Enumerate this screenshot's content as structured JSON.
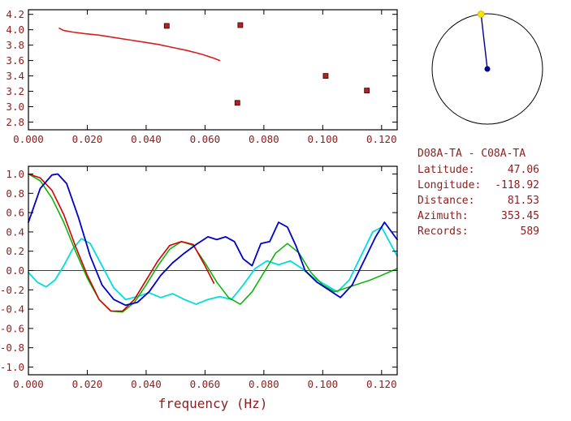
{
  "text_color": "#8b2020",
  "frame_color": "#000000",
  "station_info": {
    "title": "D08A-TA - C08A-TA",
    "rows": [
      {
        "label": "Latitude:",
        "value": "47.06"
      },
      {
        "label": "Longitude:",
        "value": "-118.92"
      },
      {
        "label": "Distance:",
        "value": "81.53"
      },
      {
        "label": "Azimuth:",
        "value": "353.45"
      },
      {
        "label": "Records:",
        "value": "589"
      }
    ]
  },
  "azimuth_dial": {
    "azimuth_deg": 353.45,
    "circle_color": "#000000",
    "line_color": "#00008b",
    "end_dot_color": "#f5e400",
    "center_dot_color": "#00008b"
  },
  "chart_data": [
    {
      "name": "dispersion",
      "type": "line+scatter",
      "title": "",
      "xlabel": "",
      "ylabel": "",
      "xlim": [
        0,
        0.1253
      ],
      "ylim": [
        2.7,
        4.26
      ],
      "xticks": [
        [
          0,
          "0.000"
        ],
        [
          0.02,
          "0.020"
        ],
        [
          0.04,
          "0.040"
        ],
        [
          0.06,
          "0.060"
        ],
        [
          0.08,
          "0.080"
        ],
        [
          0.1,
          "0.100"
        ],
        [
          0.12,
          "0.120"
        ]
      ],
      "yticks": [
        [
          4.2,
          "4.2"
        ],
        [
          4.0,
          "4.0"
        ],
        [
          3.8,
          "3.8"
        ],
        [
          3.6,
          "3.6"
        ],
        [
          3.4,
          "3.4"
        ],
        [
          3.2,
          "3.2"
        ],
        [
          3.0,
          "3.0"
        ],
        [
          2.8,
          "2.8"
        ]
      ],
      "series": [
        {
          "name": "dispersion-curve",
          "color": "#d42020",
          "width": 1.6,
          "x": [
            0.0105,
            0.012,
            0.015,
            0.019,
            0.024,
            0.029,
            0.034,
            0.039,
            0.044,
            0.049,
            0.054,
            0.059,
            0.063,
            0.065
          ],
          "y": [
            4.02,
            3.99,
            3.97,
            3.95,
            3.93,
            3.9,
            3.87,
            3.84,
            3.81,
            3.77,
            3.73,
            3.68,
            3.63,
            3.6
          ]
        }
      ],
      "scatter": {
        "color": "#b22222",
        "points": [
          [
            0.047,
            4.05
          ],
          [
            0.072,
            4.06
          ],
          [
            0.071,
            3.05
          ],
          [
            0.101,
            3.4
          ],
          [
            0.115,
            3.21
          ]
        ]
      }
    },
    {
      "name": "waveform-correlation",
      "type": "line",
      "xlabel": "frequency (Hz)",
      "ylabel": "",
      "xlim": [
        0,
        0.1253
      ],
      "ylim": [
        -1.08,
        1.08
      ],
      "zero_line": true,
      "xticks": [
        [
          0,
          "0.000"
        ],
        [
          0.02,
          "0.020"
        ],
        [
          0.04,
          "0.040"
        ],
        [
          0.06,
          "0.060"
        ],
        [
          0.08,
          "0.080"
        ],
        [
          0.1,
          "0.100"
        ],
        [
          0.12,
          "0.120"
        ]
      ],
      "yticks": [
        [
          1.0,
          "1.0"
        ],
        [
          0.8,
          "0.8"
        ],
        [
          0.6,
          "0.6"
        ],
        [
          0.4,
          "0.4"
        ],
        [
          0.2,
          "0.2"
        ],
        [
          0.0,
          "0.0"
        ],
        [
          -0.2,
          "-0.2"
        ],
        [
          -0.4,
          "-0.4"
        ],
        [
          -0.6,
          "-0.6"
        ],
        [
          -0.8,
          "-0.8"
        ],
        [
          -1.0,
          "-1.0"
        ]
      ],
      "series": [
        {
          "name": "cyan",
          "color": "#00dede",
          "width": 1.8,
          "x": [
            0,
            0.003,
            0.006,
            0.009,
            0.012,
            0.015,
            0.018,
            0.021,
            0.025,
            0.029,
            0.033,
            0.037,
            0.041,
            0.045,
            0.049,
            0.053,
            0.057,
            0.061,
            0.065,
            0.069,
            0.073,
            0.077,
            0.081,
            0.085,
            0.089,
            0.093,
            0.097,
            0.101,
            0.105,
            0.109,
            0.113,
            0.117,
            0.12,
            0.1253
          ],
          "y": [
            -0.02,
            -0.12,
            -0.17,
            -0.1,
            0.05,
            0.22,
            0.33,
            0.28,
            0.05,
            -0.18,
            -0.3,
            -0.27,
            -0.23,
            -0.28,
            -0.24,
            -0.3,
            -0.35,
            -0.3,
            -0.27,
            -0.3,
            -0.15,
            0.02,
            0.1,
            0.06,
            0.1,
            0.02,
            -0.08,
            -0.15,
            -0.22,
            -0.1,
            0.15,
            0.4,
            0.45,
            0.15
          ]
        },
        {
          "name": "green",
          "color": "#00b400",
          "width": 1.5,
          "x": [
            0,
            0.004,
            0.008,
            0.012,
            0.016,
            0.02,
            0.024,
            0.028,
            0.032,
            0.036,
            0.04,
            0.044,
            0.048,
            0.052,
            0.056,
            0.06,
            0.064,
            0.068,
            0.072,
            0.076,
            0.08,
            0.084,
            0.088,
            0.092,
            0.096,
            0.1,
            0.104,
            0.108,
            0.112,
            0.116,
            0.12,
            0.1253
          ],
          "y": [
            1.0,
            0.93,
            0.75,
            0.5,
            0.2,
            -0.08,
            -0.3,
            -0.42,
            -0.43,
            -0.33,
            -0.15,
            0.05,
            0.22,
            0.3,
            0.26,
            0.08,
            -0.12,
            -0.28,
            -0.35,
            -0.22,
            -0.02,
            0.18,
            0.28,
            0.18,
            -0.02,
            -0.15,
            -0.22,
            -0.18,
            -0.14,
            -0.1,
            -0.05,
            0.02
          ]
        },
        {
          "name": "red",
          "color": "#d40000",
          "width": 1.6,
          "x": [
            0,
            0.004,
            0.008,
            0.012,
            0.016,
            0.02,
            0.024,
            0.028,
            0.032,
            0.036,
            0.04,
            0.044,
            0.048,
            0.052,
            0.056,
            0.06,
            0.063
          ],
          "y": [
            1.0,
            0.96,
            0.83,
            0.58,
            0.25,
            -0.05,
            -0.3,
            -0.42,
            -0.42,
            -0.3,
            -0.1,
            0.1,
            0.26,
            0.3,
            0.27,
            0.05,
            -0.13
          ]
        },
        {
          "name": "blue",
          "color": "#0000c8",
          "width": 1.8,
          "x": [
            0,
            0.004,
            0.008,
            0.01,
            0.013,
            0.017,
            0.021,
            0.025,
            0.029,
            0.033,
            0.037,
            0.041,
            0.045,
            0.049,
            0.053,
            0.057,
            0.061,
            0.064,
            0.067,
            0.07,
            0.073,
            0.076,
            0.079,
            0.082,
            0.085,
            0.088,
            0.091,
            0.094,
            0.098,
            0.102,
            0.106,
            0.11,
            0.114,
            0.118,
            0.121,
            0.1253
          ],
          "y": [
            0.5,
            0.85,
            0.99,
            1.0,
            0.9,
            0.55,
            0.15,
            -0.15,
            -0.3,
            -0.36,
            -0.33,
            -0.22,
            -0.05,
            0.08,
            0.18,
            0.27,
            0.35,
            0.32,
            0.35,
            0.3,
            0.12,
            0.05,
            0.28,
            0.3,
            0.5,
            0.45,
            0.25,
            0.0,
            -0.12,
            -0.2,
            -0.28,
            -0.15,
            0.1,
            0.35,
            0.5,
            0.32
          ]
        }
      ]
    }
  ]
}
